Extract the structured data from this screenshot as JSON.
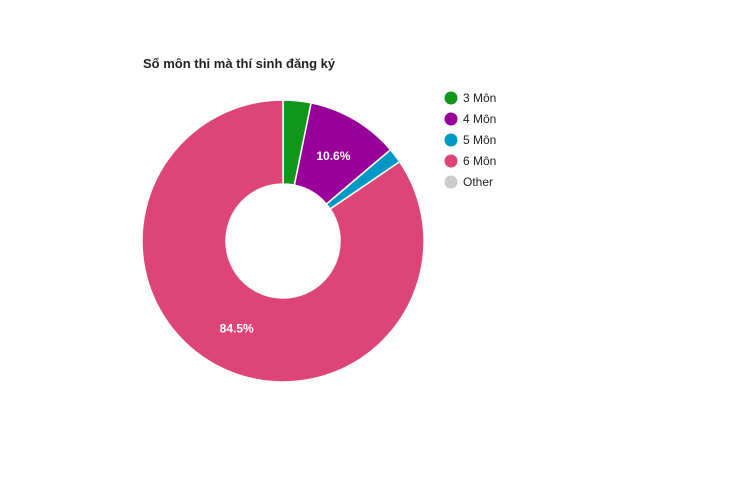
{
  "chart_data": {
    "type": "pie",
    "donut": true,
    "title": "Số môn thi mà thí sinh đăng ký",
    "categories": [
      "3 Môn",
      "4 Môn",
      "5 Môn",
      "6 Môn",
      "Other"
    ],
    "values": [
      3.2,
      10.6,
      1.7,
      84.5,
      0.0
    ],
    "data_labels": [
      "",
      "10.6%",
      "",
      "84.5%",
      ""
    ],
    "colors": [
      "#109618",
      "#990099",
      "#0099c6",
      "#dd4477",
      "#cccccc"
    ],
    "legend_position": "right"
  }
}
